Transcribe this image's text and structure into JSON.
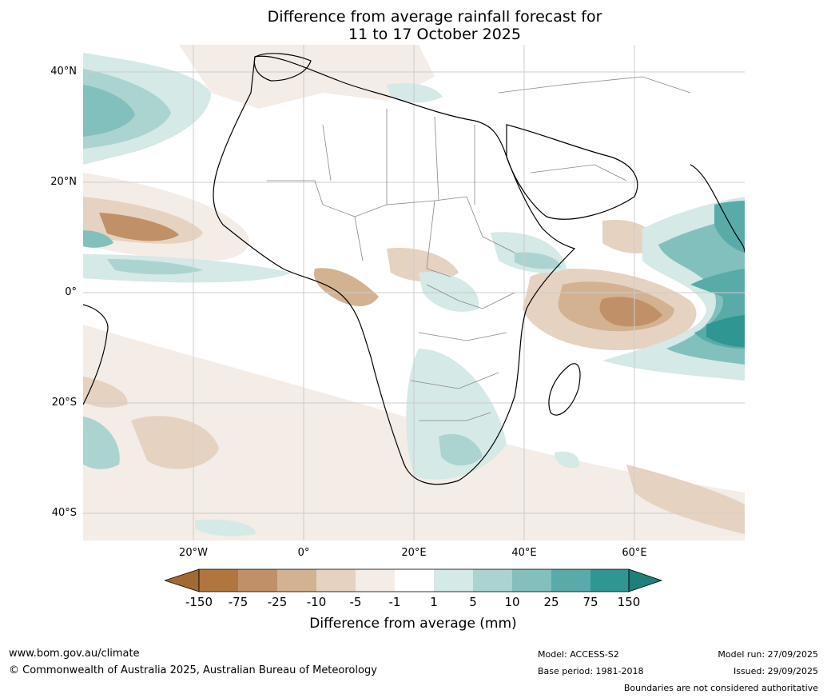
{
  "title": {
    "line1": "Difference from average rainfall forecast for",
    "line2": "11 to 17 October 2025"
  },
  "map": {
    "latitude_labels": [
      "40°N",
      "20°N",
      "0°",
      "20°S",
      "40°S"
    ],
    "longitude_labels": [
      "20°W",
      "0°",
      "20°E",
      "40°E",
      "60°E"
    ],
    "colors": {
      "land_outline": "#000000",
      "border": "#888888",
      "grid": "#cccccc"
    }
  },
  "legend": {
    "ticks": [
      "-150",
      "-75",
      "-25",
      "-10",
      "-5",
      "-1",
      "1",
      "5",
      "10",
      "25",
      "75",
      "150"
    ],
    "colors": [
      "#a06a32",
      "#b0763d",
      "#c09169",
      "#d3b292",
      "#e6d2c1",
      "#f4ece6",
      "#ffffff",
      "#d5e9e7",
      "#abd4d1",
      "#82c0bd",
      "#58aba8",
      "#2f9692",
      "#1f7f7b"
    ],
    "label": "Difference from average (mm)"
  },
  "footer": {
    "website": "www.bom.gov.au/climate",
    "copyright": "© Commonwealth of Australia 2025, Australian Bureau of Meteorology",
    "model": "Model: ACCESS-S2",
    "base_period": "Base period: 1981-2018",
    "model_run": "Model run: 27/09/2025",
    "issued": "Issued: 29/09/2025",
    "disclaimer": "Boundaries are not considered authoritative"
  }
}
